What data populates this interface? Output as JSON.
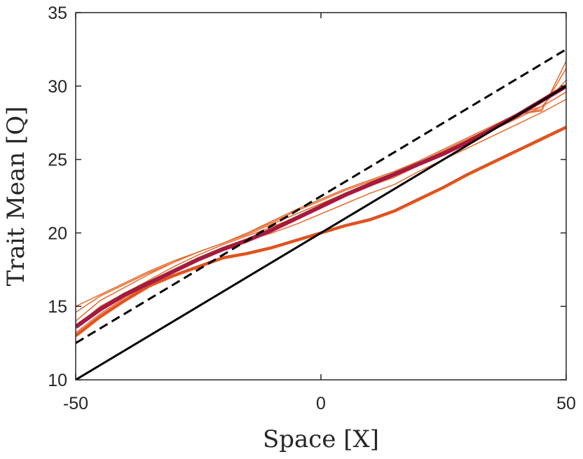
{
  "chart_data": {
    "type": "line",
    "title": "",
    "xlabel": "Space [X]",
    "ylabel": "Trait Mean [Q]",
    "xlim": [
      -50,
      50
    ],
    "ylim": [
      10,
      35
    ],
    "xticks": [
      "-50",
      "0",
      "50"
    ],
    "yticks": [
      "10",
      "15",
      "20",
      "25",
      "30",
      "35"
    ],
    "grid": false,
    "legend": "none",
    "reference_lines": [
      {
        "style": "solid",
        "color": "#000000",
        "x": [
          -50,
          50
        ],
        "y": [
          10,
          30
        ]
      },
      {
        "style": "dashed",
        "color": "#000000",
        "x": [
          -50,
          50
        ],
        "y": [
          12.5,
          32.5
        ]
      }
    ],
    "series": [
      {
        "color": "#e0531f",
        "width": 4.5,
        "x": [
          -50,
          -45,
          -40,
          -35,
          -30,
          -25,
          -20,
          -15,
          -10,
          -5,
          0,
          5,
          10,
          15,
          20,
          25,
          30,
          35,
          40,
          45,
          50
        ],
        "y": [
          13.0,
          14.3,
          15.4,
          16.4,
          17.1,
          17.7,
          18.3,
          18.6,
          19.0,
          19.5,
          20.0,
          20.5,
          20.9,
          21.5,
          22.3,
          23.1,
          24.0,
          24.8,
          25.6,
          26.4,
          27.2
        ]
      },
      {
        "color": "#e66a2e",
        "width": 1.5,
        "x": [
          -50,
          -45,
          -40,
          -35,
          -30,
          -25,
          -20,
          -15,
          -10,
          -5,
          0,
          5,
          10,
          15,
          20,
          25,
          30,
          35,
          40,
          45,
          50
        ],
        "y": [
          13.2,
          14.5,
          15.6,
          16.5,
          17.3,
          18.1,
          18.8,
          19.5,
          20.0,
          20.6,
          21.3,
          22.0,
          22.7,
          23.3,
          24.2,
          25.0,
          25.8,
          26.6,
          27.4,
          28.2,
          29.1
        ]
      },
      {
        "color": "#e66a2e",
        "width": 1.5,
        "x": [
          -50,
          -45,
          -40,
          -35,
          -30,
          -25,
          -20,
          -15,
          -10,
          -5,
          0,
          5,
          10,
          15,
          20,
          25,
          30,
          35,
          40,
          45,
          50
        ],
        "y": [
          13.6,
          15.0,
          15.9,
          16.8,
          17.7,
          18.5,
          19.2,
          19.8,
          20.4,
          21.1,
          21.8,
          22.5,
          23.2,
          23.8,
          24.6,
          25.3,
          26.1,
          27.0,
          27.8,
          28.6,
          29.6
        ]
      },
      {
        "color": "#e66a2e",
        "width": 1.5,
        "x": [
          -50,
          -45,
          -40,
          -35,
          -30,
          -25,
          -20,
          -15,
          -10,
          -5,
          0,
          5,
          10,
          15,
          20,
          25,
          30,
          35,
          40,
          45,
          50
        ],
        "y": [
          14.0,
          15.4,
          16.3,
          17.2,
          18.0,
          18.7,
          19.3,
          19.9,
          20.6,
          21.3,
          22.0,
          22.7,
          23.4,
          24.0,
          24.7,
          25.5,
          26.3,
          27.2,
          28.1,
          28.6,
          30.4
        ]
      },
      {
        "color": "#e66a2e",
        "width": 1.5,
        "x": [
          -50,
          -45,
          -40,
          -35,
          -30,
          -25,
          -20,
          -15,
          -10,
          -5,
          0,
          5,
          10,
          15,
          20,
          25,
          30,
          35,
          40,
          45,
          50
        ],
        "y": [
          14.6,
          15.7,
          16.5,
          17.3,
          18.0,
          18.7,
          19.3,
          20.0,
          20.7,
          21.5,
          22.2,
          22.9,
          23.5,
          24.1,
          24.8,
          25.6,
          26.4,
          27.2,
          28.1,
          28.4,
          31.2
        ]
      },
      {
        "color": "#e66a2e",
        "width": 1.5,
        "x": [
          -50,
          -45,
          -40,
          -35,
          -30,
          -25,
          -20,
          -15,
          -10,
          -5,
          0,
          5,
          10,
          15,
          20,
          25,
          30,
          35,
          40,
          45,
          50
        ],
        "y": [
          15.0,
          15.8,
          16.6,
          17.4,
          18.1,
          18.7,
          19.3,
          20.0,
          20.8,
          21.6,
          22.3,
          23.0,
          23.6,
          24.2,
          24.9,
          25.7,
          26.5,
          27.3,
          28.1,
          28.3,
          31.7
        ]
      },
      {
        "color": "#a51a3e",
        "width": 6,
        "x": [
          -50,
          -45,
          -40,
          -35,
          -30,
          -25,
          -20,
          -15,
          -10,
          -5,
          0,
          5,
          10,
          15,
          20,
          25,
          30,
          35,
          40,
          45,
          50
        ],
        "y": [
          13.6,
          14.8,
          15.8,
          16.6,
          17.4,
          18.2,
          18.9,
          19.5,
          20.2,
          21.0,
          21.8,
          22.6,
          23.3,
          24.0,
          24.7,
          25.4,
          26.2,
          27.1,
          28.0,
          29.0,
          30.0
        ]
      }
    ]
  }
}
